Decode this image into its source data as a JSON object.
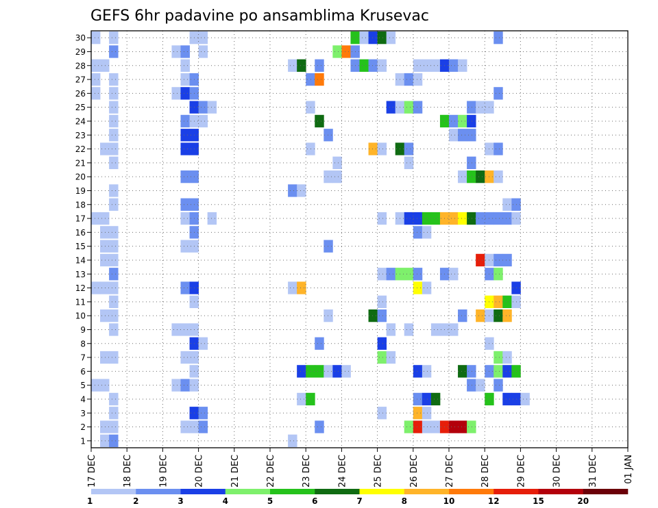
{
  "chart_data": {
    "type": "heatmap",
    "title": "GEFS 6hr padavine po ansamblima Krusevac",
    "xlabel": "",
    "ylabel": "",
    "x_tick_labels": [
      "17 DEC",
      "18 DEC",
      "19 DEC",
      "20 DEC",
      "21 DEC",
      "22 DEC",
      "23 DEC",
      "24 DEC",
      "25 DEC",
      "26 DEC",
      "27 DEC",
      "28 DEC",
      "29 DEC",
      "30 DEC",
      "31 DEC",
      "01 JAN"
    ],
    "y_tick_labels": [
      "1",
      "2",
      "3",
      "4",
      "5",
      "6",
      "7",
      "8",
      "9",
      "10",
      "11",
      "12",
      "13",
      "14",
      "15",
      "16",
      "17",
      "18",
      "19",
      "20",
      "21",
      "22",
      "23",
      "24",
      "25",
      "26",
      "27",
      "28",
      "29",
      "30"
    ],
    "time_step_hours": 6,
    "n_members": 30,
    "legend": {
      "labels": [
        "1",
        "2",
        "3",
        "4",
        "5",
        "6",
        "7",
        "8",
        "10",
        "12",
        "15",
        "20"
      ],
      "colors": [
        "#b3c6f5",
        "#6b8ff0",
        "#1a3fe6",
        "#7ef06c",
        "#25c21b",
        "#0f6b12",
        "#ffff00",
        "#ffb429",
        "#ff7a0a",
        "#e61e0a",
        "#b3000b",
        "#6b0008"
      ]
    },
    "grid": true,
    "cells": [
      {
        "m": 30,
        "t": 0,
        "c": 0
      },
      {
        "m": 30,
        "t": 2,
        "c": 0
      },
      {
        "m": 30,
        "t": 11,
        "c": 0
      },
      {
        "m": 30,
        "t": 12,
        "c": 0
      },
      {
        "m": 30,
        "t": 29,
        "c": 4
      },
      {
        "m": 30,
        "t": 30,
        "c": 0
      },
      {
        "m": 30,
        "t": 31,
        "c": 2
      },
      {
        "m": 30,
        "t": 32,
        "c": 5
      },
      {
        "m": 30,
        "t": 33,
        "c": 0
      },
      {
        "m": 30,
        "t": 45,
        "c": 1
      },
      {
        "m": 29,
        "t": 2,
        "c": 1
      },
      {
        "m": 29,
        "t": 9,
        "c": 0
      },
      {
        "m": 29,
        "t": 10,
        "c": 1
      },
      {
        "m": 29,
        "t": 12,
        "c": 0
      },
      {
        "m": 29,
        "t": 27,
        "c": 3
      },
      {
        "m": 29,
        "t": 28,
        "c": 8
      },
      {
        "m": 29,
        "t": 29,
        "c": 1
      },
      {
        "m": 28,
        "t": 0,
        "c": 0
      },
      {
        "m": 28,
        "t": 1,
        "c": 0
      },
      {
        "m": 28,
        "t": 10,
        "c": 0
      },
      {
        "m": 28,
        "t": 22,
        "c": 0
      },
      {
        "m": 28,
        "t": 23,
        "c": 5
      },
      {
        "m": 28,
        "t": 25,
        "c": 1
      },
      {
        "m": 28,
        "t": 29,
        "c": 1
      },
      {
        "m": 28,
        "t": 30,
        "c": 4
      },
      {
        "m": 28,
        "t": 31,
        "c": 1
      },
      {
        "m": 28,
        "t": 32,
        "c": 0
      },
      {
        "m": 28,
        "t": 36,
        "c": 0
      },
      {
        "m": 28,
        "t": 37,
        "c": 0
      },
      {
        "m": 28,
        "t": 38,
        "c": 0
      },
      {
        "m": 28,
        "t": 39,
        "c": 2
      },
      {
        "m": 28,
        "t": 40,
        "c": 1
      },
      {
        "m": 28,
        "t": 41,
        "c": 0
      },
      {
        "m": 27,
        "t": 0,
        "c": 0
      },
      {
        "m": 27,
        "t": 2,
        "c": 0
      },
      {
        "m": 27,
        "t": 10,
        "c": 0
      },
      {
        "m": 27,
        "t": 11,
        "c": 1
      },
      {
        "m": 27,
        "t": 24,
        "c": 1
      },
      {
        "m": 27,
        "t": 25,
        "c": 8
      },
      {
        "m": 27,
        "t": 34,
        "c": 0
      },
      {
        "m": 27,
        "t": 35,
        "c": 1
      },
      {
        "m": 27,
        "t": 36,
        "c": 0
      },
      {
        "m": 26,
        "t": 0,
        "c": 0
      },
      {
        "m": 26,
        "t": 2,
        "c": 0
      },
      {
        "m": 26,
        "t": 9,
        "c": 0
      },
      {
        "m": 26,
        "t": 10,
        "c": 2
      },
      {
        "m": 26,
        "t": 11,
        "c": 1
      },
      {
        "m": 26,
        "t": 45,
        "c": 1
      },
      {
        "m": 25,
        "t": 2,
        "c": 0
      },
      {
        "m": 25,
        "t": 11,
        "c": 2
      },
      {
        "m": 25,
        "t": 12,
        "c": 1
      },
      {
        "m": 25,
        "t": 13,
        "c": 0
      },
      {
        "m": 25,
        "t": 24,
        "c": 0
      },
      {
        "m": 25,
        "t": 33,
        "c": 2
      },
      {
        "m": 25,
        "t": 34,
        "c": 0
      },
      {
        "m": 25,
        "t": 35,
        "c": 3
      },
      {
        "m": 25,
        "t": 36,
        "c": 1
      },
      {
        "m": 25,
        "t": 42,
        "c": 1
      },
      {
        "m": 25,
        "t": 43,
        "c": 0
      },
      {
        "m": 25,
        "t": 44,
        "c": 0
      },
      {
        "m": 24,
        "t": 2,
        "c": 0
      },
      {
        "m": 24,
        "t": 10,
        "c": 1
      },
      {
        "m": 24,
        "t": 11,
        "c": 0
      },
      {
        "m": 24,
        "t": 12,
        "c": 0
      },
      {
        "m": 24,
        "t": 25,
        "c": 5
      },
      {
        "m": 24,
        "t": 39,
        "c": 4
      },
      {
        "m": 24,
        "t": 40,
        "c": 1
      },
      {
        "m": 24,
        "t": 41,
        "c": 3
      },
      {
        "m": 24,
        "t": 42,
        "c": 2
      },
      {
        "m": 23,
        "t": 2,
        "c": 0
      },
      {
        "m": 23,
        "t": 10,
        "c": 2
      },
      {
        "m": 23,
        "t": 11,
        "c": 2
      },
      {
        "m": 23,
        "t": 26,
        "c": 1
      },
      {
        "m": 23,
        "t": 40,
        "c": 0
      },
      {
        "m": 23,
        "t": 41,
        "c": 1
      },
      {
        "m": 23,
        "t": 42,
        "c": 1
      },
      {
        "m": 22,
        "t": 1,
        "c": 0
      },
      {
        "m": 22,
        "t": 2,
        "c": 0
      },
      {
        "m": 22,
        "t": 10,
        "c": 2
      },
      {
        "m": 22,
        "t": 11,
        "c": 2
      },
      {
        "m": 22,
        "t": 24,
        "c": 0
      },
      {
        "m": 22,
        "t": 31,
        "c": 7
      },
      {
        "m": 22,
        "t": 32,
        "c": 0
      },
      {
        "m": 22,
        "t": 34,
        "c": 5
      },
      {
        "m": 22,
        "t": 35,
        "c": 1
      },
      {
        "m": 22,
        "t": 44,
        "c": 0
      },
      {
        "m": 22,
        "t": 45,
        "c": 1
      },
      {
        "m": 21,
        "t": 2,
        "c": 0
      },
      {
        "m": 21,
        "t": 27,
        "c": 0
      },
      {
        "m": 21,
        "t": 35,
        "c": 0
      },
      {
        "m": 21,
        "t": 42,
        "c": 1
      },
      {
        "m": 20,
        "t": 10,
        "c": 1
      },
      {
        "m": 20,
        "t": 11,
        "c": 1
      },
      {
        "m": 20,
        "t": 26,
        "c": 0
      },
      {
        "m": 20,
        "t": 27,
        "c": 0
      },
      {
        "m": 20,
        "t": 41,
        "c": 0
      },
      {
        "m": 20,
        "t": 42,
        "c": 4
      },
      {
        "m": 20,
        "t": 43,
        "c": 5
      },
      {
        "m": 20,
        "t": 44,
        "c": 7
      },
      {
        "m": 20,
        "t": 45,
        "c": 0
      },
      {
        "m": 19,
        "t": 2,
        "c": 0
      },
      {
        "m": 19,
        "t": 22,
        "c": 1
      },
      {
        "m": 19,
        "t": 23,
        "c": 0
      },
      {
        "m": 18,
        "t": 2,
        "c": 0
      },
      {
        "m": 18,
        "t": 10,
        "c": 1
      },
      {
        "m": 18,
        "t": 11,
        "c": 1
      },
      {
        "m": 18,
        "t": 46,
        "c": 0
      },
      {
        "m": 18,
        "t": 47,
        "c": 1
      },
      {
        "m": 17,
        "t": 0,
        "c": 0
      },
      {
        "m": 17,
        "t": 1,
        "c": 0
      },
      {
        "m": 17,
        "t": 10,
        "c": 0
      },
      {
        "m": 17,
        "t": 11,
        "c": 1
      },
      {
        "m": 17,
        "t": 13,
        "c": 0
      },
      {
        "m": 17,
        "t": 32,
        "c": 0
      },
      {
        "m": 17,
        "t": 34,
        "c": 0
      },
      {
        "m": 17,
        "t": 35,
        "c": 2
      },
      {
        "m": 17,
        "t": 36,
        "c": 2
      },
      {
        "m": 17,
        "t": 37,
        "c": 4
      },
      {
        "m": 17,
        "t": 38,
        "c": 4
      },
      {
        "m": 17,
        "t": 39,
        "c": 7
      },
      {
        "m": 17,
        "t": 40,
        "c": 7
      },
      {
        "m": 17,
        "t": 41,
        "c": 6
      },
      {
        "m": 17,
        "t": 42,
        "c": 5
      },
      {
        "m": 17,
        "t": 43,
        "c": 1
      },
      {
        "m": 17,
        "t": 44,
        "c": 1
      },
      {
        "m": 17,
        "t": 45,
        "c": 1
      },
      {
        "m": 17,
        "t": 46,
        "c": 1
      },
      {
        "m": 17,
        "t": 47,
        "c": 0
      },
      {
        "m": 16,
        "t": 1,
        "c": 0
      },
      {
        "m": 16,
        "t": 2,
        "c": 0
      },
      {
        "m": 16,
        "t": 11,
        "c": 1
      },
      {
        "m": 16,
        "t": 36,
        "c": 1
      },
      {
        "m": 16,
        "t": 37,
        "c": 0
      },
      {
        "m": 15,
        "t": 1,
        "c": 0
      },
      {
        "m": 15,
        "t": 2,
        "c": 0
      },
      {
        "m": 15,
        "t": 10,
        "c": 0
      },
      {
        "m": 15,
        "t": 11,
        "c": 0
      },
      {
        "m": 15,
        "t": 26,
        "c": 1
      },
      {
        "m": 14,
        "t": 1,
        "c": 0
      },
      {
        "m": 14,
        "t": 2,
        "c": 0
      },
      {
        "m": 14,
        "t": 43,
        "c": 9
      },
      {
        "m": 14,
        "t": 44,
        "c": 0
      },
      {
        "m": 14,
        "t": 45,
        "c": 1
      },
      {
        "m": 14,
        "t": 46,
        "c": 1
      },
      {
        "m": 13,
        "t": 2,
        "c": 1
      },
      {
        "m": 13,
        "t": 32,
        "c": 0
      },
      {
        "m": 13,
        "t": 33,
        "c": 1
      },
      {
        "m": 13,
        "t": 34,
        "c": 3
      },
      {
        "m": 13,
        "t": 35,
        "c": 3
      },
      {
        "m": 13,
        "t": 36,
        "c": 1
      },
      {
        "m": 13,
        "t": 39,
        "c": 1
      },
      {
        "m": 13,
        "t": 40,
        "c": 0
      },
      {
        "m": 13,
        "t": 44,
        "c": 1
      },
      {
        "m": 13,
        "t": 45,
        "c": 3
      },
      {
        "m": 12,
        "t": 0,
        "c": 0
      },
      {
        "m": 12,
        "t": 1,
        "c": 0
      },
      {
        "m": 12,
        "t": 2,
        "c": 0
      },
      {
        "m": 12,
        "t": 10,
        "c": 1
      },
      {
        "m": 12,
        "t": 11,
        "c": 2
      },
      {
        "m": 12,
        "t": 22,
        "c": 0
      },
      {
        "m": 12,
        "t": 23,
        "c": 7
      },
      {
        "m": 12,
        "t": 36,
        "c": 6
      },
      {
        "m": 12,
        "t": 37,
        "c": 0
      },
      {
        "m": 12,
        "t": 47,
        "c": 2
      },
      {
        "m": 11,
        "t": 2,
        "c": 0
      },
      {
        "m": 11,
        "t": 11,
        "c": 0
      },
      {
        "m": 11,
        "t": 32,
        "c": 0
      },
      {
        "m": 11,
        "t": 44,
        "c": 6
      },
      {
        "m": 11,
        "t": 45,
        "c": 7
      },
      {
        "m": 11,
        "t": 46,
        "c": 4
      },
      {
        "m": 11,
        "t": 47,
        "c": 0
      },
      {
        "m": 10,
        "t": 1,
        "c": 0
      },
      {
        "m": 10,
        "t": 2,
        "c": 0
      },
      {
        "m": 10,
        "t": 26,
        "c": 0
      },
      {
        "m": 10,
        "t": 31,
        "c": 5
      },
      {
        "m": 10,
        "t": 32,
        "c": 1
      },
      {
        "m": 10,
        "t": 41,
        "c": 1
      },
      {
        "m": 10,
        "t": 43,
        "c": 7
      },
      {
        "m": 10,
        "t": 44,
        "c": 0
      },
      {
        "m": 10,
        "t": 45,
        "c": 5
      },
      {
        "m": 10,
        "t": 46,
        "c": 7
      },
      {
        "m": 9,
        "t": 2,
        "c": 0
      },
      {
        "m": 9,
        "t": 9,
        "c": 0
      },
      {
        "m": 9,
        "t": 10,
        "c": 0
      },
      {
        "m": 9,
        "t": 11,
        "c": 0
      },
      {
        "m": 9,
        "t": 33,
        "c": 0
      },
      {
        "m": 9,
        "t": 35,
        "c": 0
      },
      {
        "m": 9,
        "t": 38,
        "c": 0
      },
      {
        "m": 9,
        "t": 39,
        "c": 0
      },
      {
        "m": 9,
        "t": 40,
        "c": 0
      },
      {
        "m": 8,
        "t": 11,
        "c": 2
      },
      {
        "m": 8,
        "t": 12,
        "c": 0
      },
      {
        "m": 8,
        "t": 25,
        "c": 1
      },
      {
        "m": 8,
        "t": 32,
        "c": 2
      },
      {
        "m": 8,
        "t": 44,
        "c": 0
      },
      {
        "m": 7,
        "t": 1,
        "c": 0
      },
      {
        "m": 7,
        "t": 2,
        "c": 0
      },
      {
        "m": 7,
        "t": 10,
        "c": 0
      },
      {
        "m": 7,
        "t": 11,
        "c": 0
      },
      {
        "m": 7,
        "t": 32,
        "c": 3
      },
      {
        "m": 7,
        "t": 33,
        "c": 0
      },
      {
        "m": 7,
        "t": 45,
        "c": 3
      },
      {
        "m": 7,
        "t": 46,
        "c": 0
      },
      {
        "m": 6,
        "t": 11,
        "c": 0
      },
      {
        "m": 6,
        "t": 23,
        "c": 2
      },
      {
        "m": 6,
        "t": 24,
        "c": 4
      },
      {
        "m": 6,
        "t": 25,
        "c": 4
      },
      {
        "m": 6,
        "t": 26,
        "c": 0
      },
      {
        "m": 6,
        "t": 27,
        "c": 2
      },
      {
        "m": 6,
        "t": 28,
        "c": 0
      },
      {
        "m": 6,
        "t": 36,
        "c": 2
      },
      {
        "m": 6,
        "t": 37,
        "c": 0
      },
      {
        "m": 6,
        "t": 41,
        "c": 5
      },
      {
        "m": 6,
        "t": 42,
        "c": 1
      },
      {
        "m": 6,
        "t": 44,
        "c": 1
      },
      {
        "m": 6,
        "t": 45,
        "c": 3
      },
      {
        "m": 6,
        "t": 46,
        "c": 2
      },
      {
        "m": 6,
        "t": 47,
        "c": 4
      },
      {
        "m": 5,
        "t": 0,
        "c": 0
      },
      {
        "m": 5,
        "t": 1,
        "c": 0
      },
      {
        "m": 5,
        "t": 9,
        "c": 0
      },
      {
        "m": 5,
        "t": 10,
        "c": 1
      },
      {
        "m": 5,
        "t": 11,
        "c": 0
      },
      {
        "m": 5,
        "t": 42,
        "c": 1
      },
      {
        "m": 5,
        "t": 43,
        "c": 0
      },
      {
        "m": 5,
        "t": 45,
        "c": 1
      },
      {
        "m": 4,
        "t": 2,
        "c": 0
      },
      {
        "m": 4,
        "t": 23,
        "c": 0
      },
      {
        "m": 4,
        "t": 24,
        "c": 4
      },
      {
        "m": 4,
        "t": 36,
        "c": 1
      },
      {
        "m": 4,
        "t": 37,
        "c": 2
      },
      {
        "m": 4,
        "t": 38,
        "c": 5
      },
      {
        "m": 4,
        "t": 44,
        "c": 4
      },
      {
        "m": 4,
        "t": 46,
        "c": 2
      },
      {
        "m": 4,
        "t": 47,
        "c": 2
      },
      {
        "m": 4,
        "t": 48,
        "c": 0
      },
      {
        "m": 3,
        "t": 2,
        "c": 0
      },
      {
        "m": 3,
        "t": 11,
        "c": 2
      },
      {
        "m": 3,
        "t": 12,
        "c": 1
      },
      {
        "m": 3,
        "t": 32,
        "c": 0
      },
      {
        "m": 3,
        "t": 36,
        "c": 7
      },
      {
        "m": 3,
        "t": 37,
        "c": 0
      },
      {
        "m": 2,
        "t": 1,
        "c": 0
      },
      {
        "m": 2,
        "t": 2,
        "c": 0
      },
      {
        "m": 2,
        "t": 10,
        "c": 0
      },
      {
        "m": 2,
        "t": 11,
        "c": 0
      },
      {
        "m": 2,
        "t": 12,
        "c": 1
      },
      {
        "m": 2,
        "t": 25,
        "c": 1
      },
      {
        "m": 2,
        "t": 35,
        "c": 3
      },
      {
        "m": 2,
        "t": 36,
        "c": 9
      },
      {
        "m": 2,
        "t": 37,
        "c": 0
      },
      {
        "m": 2,
        "t": 38,
        "c": 0
      },
      {
        "m": 2,
        "t": 39,
        "c": 9
      },
      {
        "m": 2,
        "t": 40,
        "c": 10
      },
      {
        "m": 2,
        "t": 41,
        "c": 10
      },
      {
        "m": 2,
        "t": 42,
        "c": 3
      },
      {
        "m": 1,
        "t": 1,
        "c": 0
      },
      {
        "m": 1,
        "t": 2,
        "c": 1
      },
      {
        "m": 1,
        "t": 22,
        "c": 0
      }
    ]
  }
}
